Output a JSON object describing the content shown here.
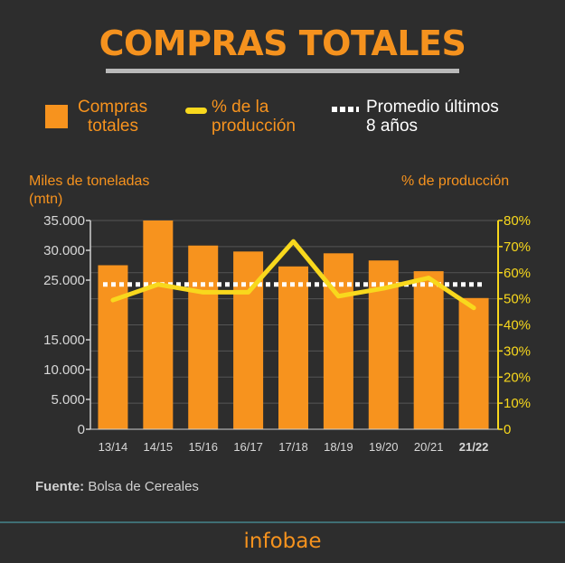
{
  "title": "COMPRAS TOTALES",
  "legend": {
    "bars_label_line1": "Compras",
    "bars_label_line2": "totales",
    "line_label_line1": "% de la",
    "line_label_line2": "producción",
    "avg_label_line1": "Promedio últimos",
    "avg_label_line2": "8 años"
  },
  "axes": {
    "left_title_line1": "Miles de toneladas",
    "left_title_line2": "(mtn)",
    "right_title": "% de producción"
  },
  "source": {
    "label": "Fuente:",
    "text": " Bolsa de Cereales"
  },
  "brand": "infobae",
  "colors": {
    "background": "#2d2d2d",
    "bars": "#f7931e",
    "line": "#f8d81d",
    "average": "#ffffff"
  },
  "chart_data": {
    "type": "bar",
    "categories": [
      "13/14",
      "14/15",
      "15/16",
      "16/17",
      "17/18",
      "18/19",
      "19/20",
      "20/21",
      "21/22"
    ],
    "highlight_category": "21/22",
    "series": [
      {
        "name": "Compras totales",
        "type": "bar",
        "axis": "left",
        "values": [
          27500,
          35000,
          30800,
          29800,
          27300,
          29500,
          28300,
          26500,
          22000
        ]
      },
      {
        "name": "% de la producción",
        "type": "line",
        "axis": "right",
        "values": [
          49.5,
          55.5,
          52.5,
          52.5,
          72,
          51,
          54,
          58,
          46.5
        ]
      },
      {
        "name": "Promedio últimos 8 años",
        "type": "dotted-line",
        "axis": "right",
        "value": 55.5
      }
    ],
    "left_axis": {
      "ticks": [
        "0",
        "5.000",
        "10.000",
        "15.000",
        "25.000",
        "30.000",
        "35.000"
      ],
      "tick_values": [
        0,
        5000,
        10000,
        15000,
        25000,
        30000,
        35000
      ],
      "ylim": [
        0,
        35000
      ]
    },
    "right_axis": {
      "ticks": [
        "0",
        "10%",
        "20%",
        "30%",
        "40%",
        "50%",
        "60%",
        "70%",
        "80%"
      ],
      "tick_values": [
        0,
        10,
        20,
        30,
        40,
        50,
        60,
        70,
        80
      ],
      "ylim": [
        0,
        80
      ]
    },
    "grid": true
  }
}
